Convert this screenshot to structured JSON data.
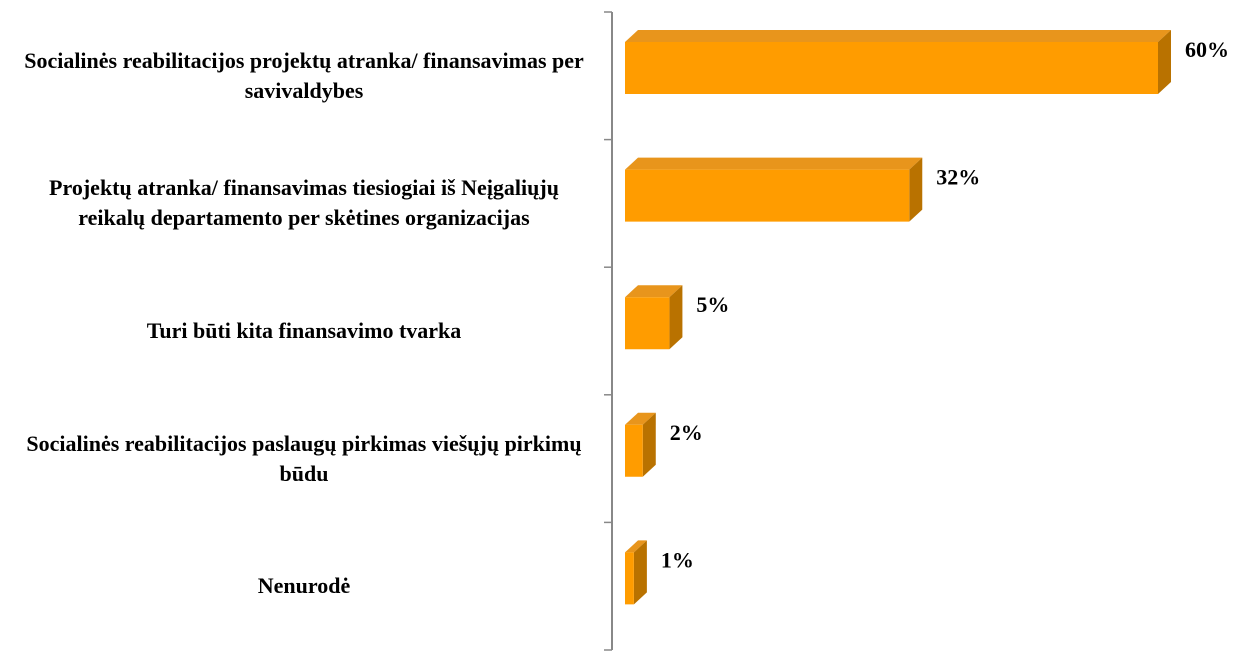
{
  "chart_data": {
    "type": "bar",
    "orientation": "horizontal",
    "categories": [
      "Socialinės reabilitacijos projektų atranka/ finansavimas per savivaldybes",
      "Projektų atranka/ finansavimas tiesiogiai iš Neįgaliųjų reikalų departamento per skėtines organizacijas",
      "Turi būti kita finansavimo tvarka",
      "Socialinės reabilitacijos paslaugų pirkimas viešųjų pirkimų būdu",
      "Nenurodė"
    ],
    "values": [
      60,
      32,
      5,
      2,
      1
    ],
    "value_labels": [
      "60%",
      "32%",
      "5%",
      "2%",
      "1%"
    ],
    "color": "#ff9c00"
  }
}
